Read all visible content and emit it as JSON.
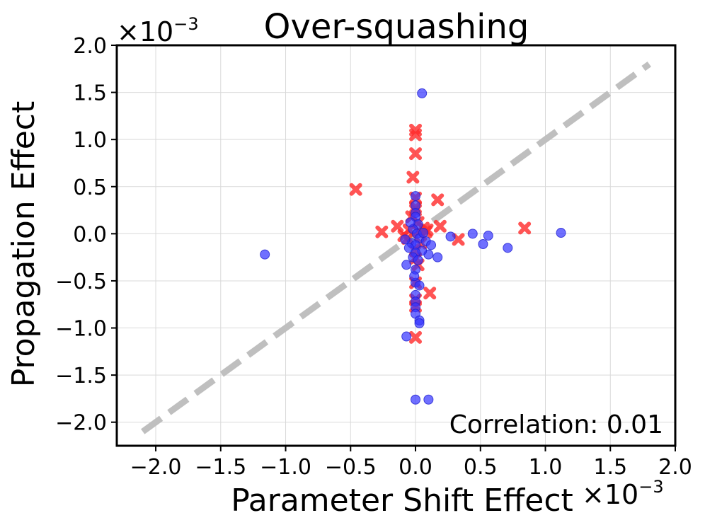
{
  "chart_data": {
    "type": "scatter",
    "title": "Over-squashing",
    "xlabel": "Parameter Shift Effect",
    "ylabel": "Propagation Effect",
    "x_multiplier": "×10",
    "x_multiplier_exp": "−3",
    "y_multiplier": "×10",
    "y_multiplier_exp": "−3",
    "xlim": [
      -2.3,
      2.0
    ],
    "ylim": [
      -2.25,
      2.0
    ],
    "x_ticks": [
      -2.0,
      -1.5,
      -1.0,
      -0.5,
      0.0,
      0.5,
      1.0,
      1.5,
      2.0
    ],
    "x_tick_labels": [
      "−2.0",
      "−1.5",
      "−1.0",
      "−0.5",
      "0.0",
      "0.5",
      "1.0",
      "1.5",
      "2.0"
    ],
    "y_ticks": [
      -2.0,
      -1.5,
      -1.0,
      -0.5,
      0.0,
      0.5,
      1.0,
      1.5,
      2.0
    ],
    "y_tick_labels": [
      "−2.0",
      "−1.5",
      "−1.0",
      "−0.5",
      "0.0",
      "0.5",
      "1.0",
      "1.5",
      "2.0"
    ],
    "grid": true,
    "reference_line": {
      "x": [
        -2.1,
        1.8
      ],
      "y": [
        -2.1,
        1.8
      ],
      "color": "#bfbfbf",
      "style": "dashed"
    },
    "annotation": "Correlation: 0.01",
    "series": [
      {
        "marker": "x",
        "color": "#ff2a2a",
        "points": [
          [
            0.0,
            1.1
          ],
          [
            0.0,
            1.05
          ],
          [
            0.0,
            0.85
          ],
          [
            -0.02,
            0.6
          ],
          [
            0.17,
            0.36
          ],
          [
            -0.46,
            0.47
          ],
          [
            0.84,
            0.06
          ],
          [
            0.33,
            -0.06
          ],
          [
            -0.26,
            0.02
          ],
          [
            -0.14,
            0.08
          ],
          [
            0.19,
            0.08
          ],
          [
            0.09,
            0.04
          ],
          [
            0.03,
            0.02
          ],
          [
            -0.05,
            0.04
          ],
          [
            0.0,
            0.38
          ],
          [
            0.0,
            0.28
          ],
          [
            0.0,
            0.25
          ],
          [
            -0.03,
            0.18
          ],
          [
            0.02,
            0.12
          ],
          [
            -0.06,
            -0.05
          ],
          [
            0.04,
            -0.1
          ],
          [
            0.0,
            -0.26
          ],
          [
            0.02,
            -0.33
          ],
          [
            0.0,
            -0.52
          ],
          [
            0.11,
            -0.63
          ],
          [
            0.0,
            -0.7
          ],
          [
            0.0,
            -0.77
          ],
          [
            0.0,
            -1.1
          ],
          [
            0.0,
            -0.18
          ],
          [
            0.08,
            0.02
          ],
          [
            -0.09,
            -0.02
          ],
          [
            0.06,
            0.06
          ]
        ]
      },
      {
        "marker": "o",
        "color": "#3333ff",
        "points": [
          [
            0.05,
            1.49
          ],
          [
            1.12,
            0.01
          ],
          [
            -1.16,
            -0.22
          ],
          [
            0.44,
            0.0
          ],
          [
            0.56,
            -0.02
          ],
          [
            0.52,
            -0.11
          ],
          [
            0.71,
            -0.15
          ],
          [
            0.27,
            -0.03
          ],
          [
            0.17,
            -0.25
          ],
          [
            0.1,
            -0.22
          ],
          [
            0.0,
            0.4
          ],
          [
            0.0,
            0.3
          ],
          [
            0.0,
            0.22
          ],
          [
            0.0,
            0.18
          ],
          [
            0.02,
            0.1
          ],
          [
            -0.02,
            0.05
          ],
          [
            0.01,
            0.0
          ],
          [
            0.03,
            -0.05
          ],
          [
            -0.03,
            -0.1
          ],
          [
            0.0,
            -0.12
          ],
          [
            -0.05,
            -0.15
          ],
          [
            0.05,
            -0.18
          ],
          [
            0.0,
            -0.2
          ],
          [
            -0.02,
            -0.25
          ],
          [
            0.02,
            -0.28
          ],
          [
            -0.07,
            -0.33
          ],
          [
            0.0,
            -0.38
          ],
          [
            0.0,
            -0.52
          ],
          [
            0.03,
            -0.55
          ],
          [
            0.0,
            -0.65
          ],
          [
            0.0,
            -0.72
          ],
          [
            0.0,
            -0.78
          ],
          [
            0.0,
            -0.85
          ],
          [
            0.03,
            -0.92
          ],
          [
            0.03,
            -0.95
          ],
          [
            -0.07,
            -1.09
          ],
          [
            0.0,
            -1.76
          ],
          [
            0.1,
            -1.76
          ],
          [
            0.08,
            -0.08
          ],
          [
            -0.08,
            -0.06
          ],
          [
            0.12,
            -0.12
          ],
          [
            -0.01,
            -0.45
          ],
          [
            0.06,
            0.01
          ],
          [
            -0.04,
            0.12
          ]
        ]
      }
    ]
  }
}
